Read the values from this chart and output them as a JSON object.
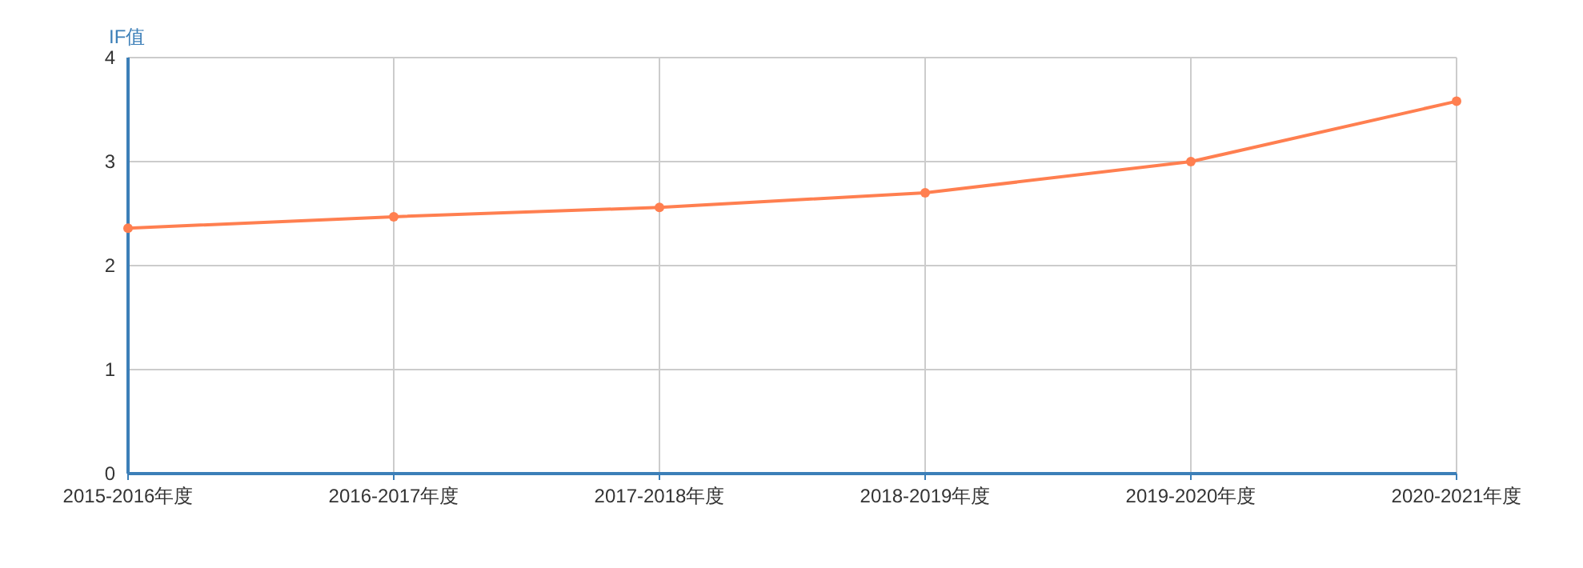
{
  "chart_data": {
    "type": "line",
    "ylabel": "IF值",
    "categories": [
      "2015-2016年度",
      "2016-2017年度",
      "2017-2018年度",
      "2018-2019年度",
      "2019-2020年度",
      "2020-2021年度"
    ],
    "series": [
      {
        "color": "#ff7f50",
        "values": [
          2.36,
          2.47,
          2.56,
          2.7,
          3.0,
          3.58
        ]
      }
    ],
    "ylim": [
      0,
      4
    ],
    "yticks": [
      0,
      1,
      2,
      3,
      4
    ],
    "grid": true,
    "marker": "circle",
    "line_style": "solid"
  }
}
